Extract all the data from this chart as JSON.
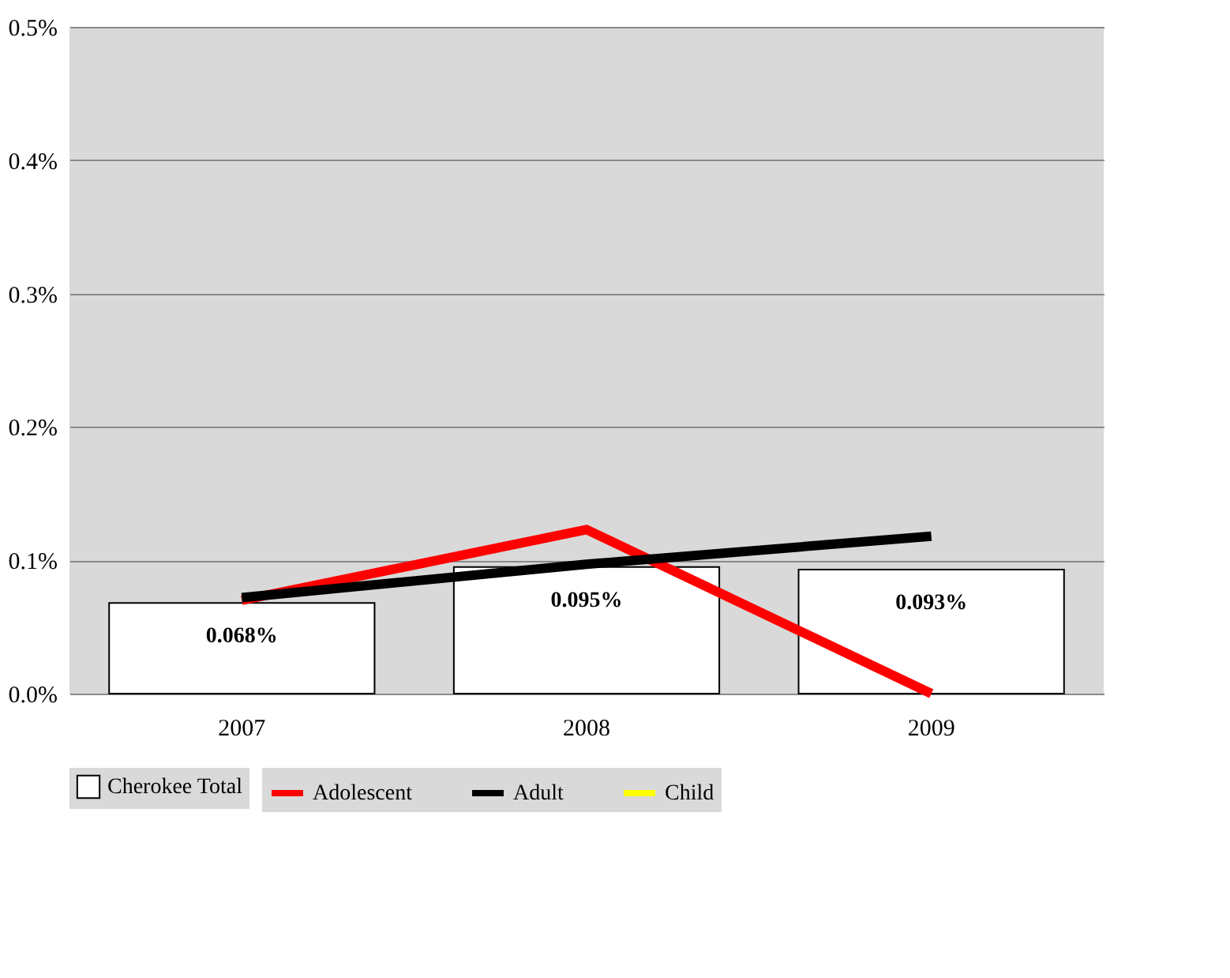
{
  "chart_data": {
    "type": "bar",
    "categories": [
      "2007",
      "2008",
      "2009"
    ],
    "series": [
      {
        "name": "Cherokee Total",
        "color": "#ffffff",
        "values": [
          0.068,
          0.095,
          0.093
        ],
        "value_labels": [
          "0.068%",
          "0.095%",
          "0.093%"
        ]
      },
      {
        "name": "Adolescent",
        "type": "line",
        "color": "#ff0000",
        "values": [
          0.07,
          0.123,
          0.0
        ]
      },
      {
        "name": "Adult",
        "type": "line",
        "color": "#000000",
        "values": [
          0.072,
          0.097,
          0.118
        ]
      },
      {
        "name": "Child",
        "type": "line",
        "color": "#ffff00",
        "values": [
          null,
          null,
          null
        ]
      }
    ],
    "ylim": [
      0,
      0.5
    ],
    "yticks": [
      {
        "value": 0,
        "label": "0.0%"
      },
      {
        "value": 0.1,
        "label": "0.1%"
      },
      {
        "value": 0.2,
        "label": "0.2%"
      },
      {
        "value": 0.3,
        "label": "0.3%"
      },
      {
        "value": 0.4,
        "label": "0.4%"
      },
      {
        "value": 0.5,
        "label": "0.5%"
      }
    ],
    "grid": "y",
    "legend": "bottom"
  }
}
